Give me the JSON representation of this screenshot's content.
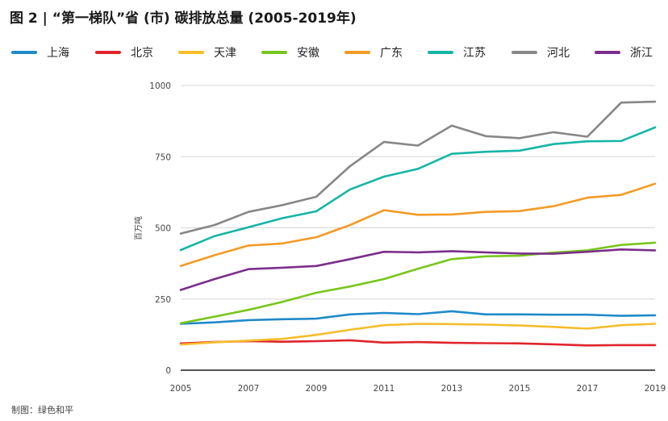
{
  "title": "图 2 |  “第一梯队”省 (市) 碳排放总量 (2005-2019年)",
  "footer": "制图：绿色和平",
  "chart_data": {
    "type": "line",
    "x": [
      2005,
      2006,
      2007,
      2008,
      2009,
      2010,
      2011,
      2012,
      2013,
      2014,
      2015,
      2016,
      2017,
      2018,
      2019
    ],
    "x_ticks": [
      "2005",
      "2007",
      "2009",
      "2011",
      "2013",
      "2015",
      "2017",
      "2019"
    ],
    "y_ticks": [
      "0",
      "250",
      "500",
      "750",
      "1000"
    ],
    "ylabel": "百万吨",
    "ylim": [
      0,
      1000
    ],
    "grid": "horizontal",
    "legend_position": "top",
    "series": [
      {
        "name": "上海",
        "color": "#1f8ac8",
        "values": [
          163,
          168,
          176,
          179,
          181,
          196,
          201,
          197,
          207,
          196,
          196,
          195,
          195,
          191,
          193
        ]
      },
      {
        "name": "北京",
        "color": "#e0242c",
        "values": [
          94,
          99,
          102,
          100,
          102,
          105,
          97,
          99,
          96,
          95,
          94,
          91,
          87,
          88,
          88
        ]
      },
      {
        "name": "天津",
        "color": "#f5bd2b",
        "values": [
          90,
          98,
          104,
          110,
          124,
          142,
          158,
          163,
          162,
          160,
          157,
          152,
          146,
          158,
          163
        ]
      },
      {
        "name": "安徽",
        "color": "#78c61c",
        "values": [
          165,
          188,
          212,
          240,
          272,
          294,
          320,
          356,
          390,
          400,
          402,
          413,
          421,
          440,
          448
        ]
      },
      {
        "name": "广东",
        "color": "#f39a26",
        "values": [
          366,
          404,
          438,
          445,
          467,
          510,
          562,
          546,
          547,
          556,
          559,
          576,
          606,
          616,
          655
        ]
      },
      {
        "name": "江苏",
        "color": "#15b5a6",
        "values": [
          422,
          471,
          502,
          534,
          558,
          635,
          680,
          707,
          760,
          767,
          771,
          794,
          804,
          805,
          853
        ]
      },
      {
        "name": "河北",
        "color": "#878787",
        "values": [
          480,
          510,
          556,
          580,
          609,
          717,
          802,
          789,
          859,
          822,
          815,
          836,
          820,
          940,
          943
        ]
      },
      {
        "name": "浙江",
        "color": "#7b2f8b",
        "values": [
          282,
          320,
          355,
          360,
          366,
          390,
          416,
          414,
          418,
          414,
          410,
          409,
          416,
          424,
          421
        ]
      }
    ]
  }
}
